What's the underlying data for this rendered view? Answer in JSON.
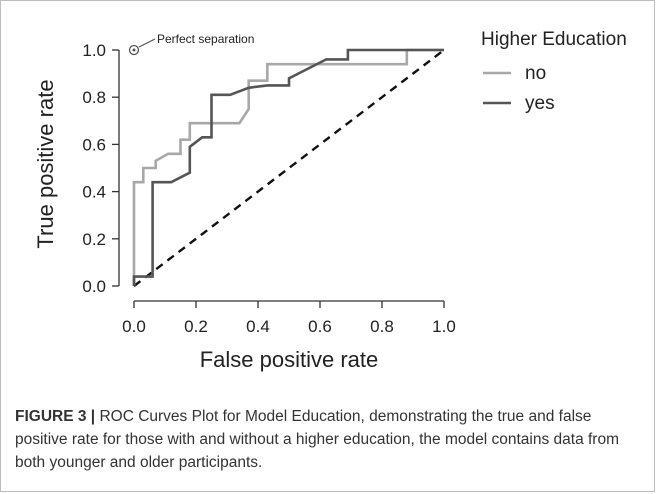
{
  "chart_data": {
    "type": "line",
    "xlabel": "False positive rate",
    "ylabel": "True positive rate",
    "xlim": [
      0,
      1
    ],
    "ylim": [
      0,
      1
    ],
    "xticks": [
      "0.0",
      "0.2",
      "0.4",
      "0.6",
      "0.8",
      "1.0"
    ],
    "yticks": [
      "0.0",
      "0.2",
      "0.4",
      "0.6",
      "0.8",
      "1.0"
    ],
    "grid": false,
    "legend": {
      "title": "Higher Education",
      "position": "right"
    },
    "annotation": {
      "text": "Perfect separation",
      "x": 0,
      "y": 1
    },
    "diagonal": [
      [
        0,
        0
      ],
      [
        1,
        1
      ]
    ],
    "series": [
      {
        "name": "no",
        "color": "#a8a8a8",
        "points": [
          [
            0,
            0
          ],
          [
            0,
            0.44
          ],
          [
            0.03,
            0.44
          ],
          [
            0.03,
            0.5
          ],
          [
            0.07,
            0.5
          ],
          [
            0.07,
            0.53
          ],
          [
            0.11,
            0.56
          ],
          [
            0.15,
            0.56
          ],
          [
            0.15,
            0.62
          ],
          [
            0.18,
            0.62
          ],
          [
            0.18,
            0.69
          ],
          [
            0.25,
            0.69
          ],
          [
            0.34,
            0.69
          ],
          [
            0.37,
            0.75
          ],
          [
            0.37,
            0.87
          ],
          [
            0.43,
            0.87
          ],
          [
            0.43,
            0.94
          ],
          [
            0.5,
            0.94
          ],
          [
            0.88,
            0.94
          ],
          [
            0.88,
            1
          ],
          [
            1,
            1
          ]
        ]
      },
      {
        "name": "yes",
        "color": "#555555",
        "points": [
          [
            0,
            0
          ],
          [
            0,
            0.04
          ],
          [
            0.06,
            0.04
          ],
          [
            0.06,
            0.44
          ],
          [
            0.12,
            0.44
          ],
          [
            0.18,
            0.48
          ],
          [
            0.18,
            0.59
          ],
          [
            0.22,
            0.63
          ],
          [
            0.25,
            0.63
          ],
          [
            0.25,
            0.81
          ],
          [
            0.31,
            0.81
          ],
          [
            0.37,
            0.84
          ],
          [
            0.43,
            0.85
          ],
          [
            0.5,
            0.85
          ],
          [
            0.5,
            0.88
          ],
          [
            0.56,
            0.92
          ],
          [
            0.62,
            0.96
          ],
          [
            0.69,
            0.96
          ],
          [
            0.69,
            1
          ],
          [
            1,
            1
          ]
        ]
      }
    ]
  },
  "caption": {
    "label": "FIGURE 3 |",
    "text": " ROC Curves Plot for Model Education, demonstrating the true and false positive rate for those with and without a higher education, the model contains data from both younger and older participants."
  }
}
